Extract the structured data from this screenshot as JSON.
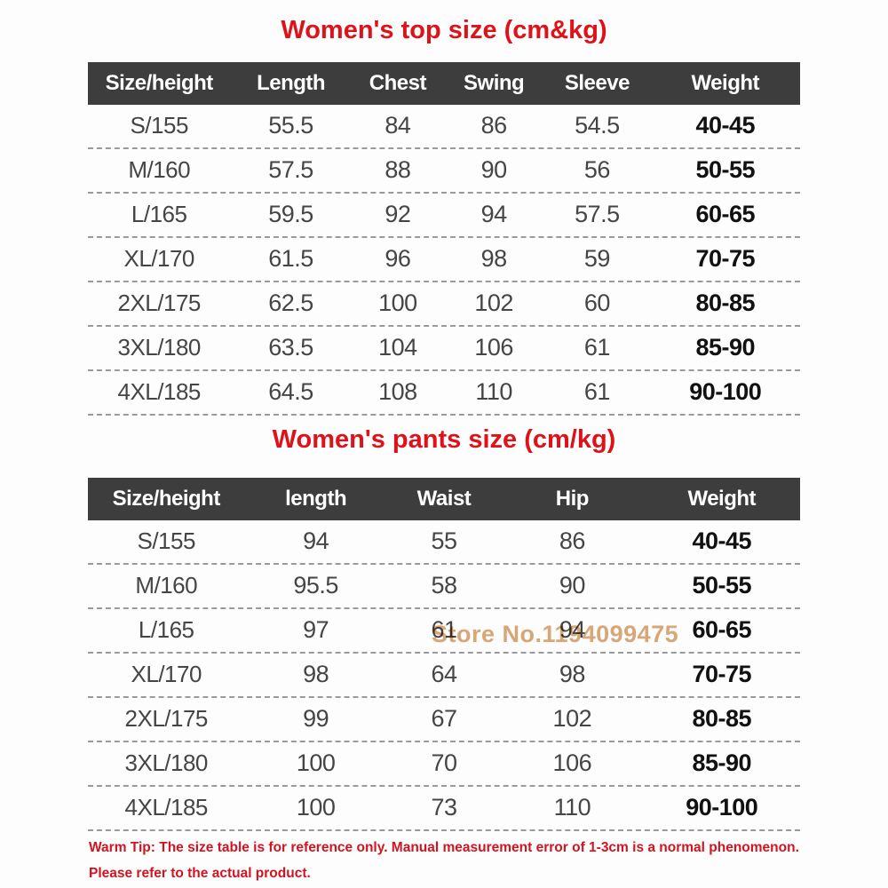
{
  "colors": {
    "page_bg": "#fdfdfd",
    "title_red": "#e01219",
    "header_bg": "#3d3d3d",
    "header_text": "#ffffff",
    "value_gray": "#454545",
    "weight_black": "#111111",
    "watermark_tan": "#d9a878",
    "warning_red": "#d31420",
    "divider_gray": "#9a9a9a"
  },
  "chart_data": [
    {
      "type": "table",
      "title": "Women's top size (cm&kg)",
      "columns": [
        "Size/height",
        "Length",
        "Chest",
        "Swing",
        "Sleeve",
        "Weight"
      ],
      "rows": [
        [
          "S/155",
          "55.5",
          "84",
          "86",
          "54.5",
          "40-45"
        ],
        [
          "M/160",
          "57.5",
          "88",
          "90",
          "56",
          "50-55"
        ],
        [
          "L/165",
          "59.5",
          "92",
          "94",
          "57.5",
          "60-65"
        ],
        [
          "XL/170",
          "61.5",
          "96",
          "98",
          "59",
          "70-75"
        ],
        [
          "2XL/175",
          "62.5",
          "100",
          "102",
          "60",
          "80-85"
        ],
        [
          "3XL/180",
          "63.5",
          "104",
          "106",
          "61",
          "85-90"
        ],
        [
          "4XL/185",
          "64.5",
          "108",
          "110",
          "61",
          "90-100"
        ]
      ]
    },
    {
      "type": "table",
      "title": "Women's pants size (cm/kg)",
      "columns": [
        "Size/height",
        "length",
        "Waist",
        "Hip",
        "Weight"
      ],
      "rows": [
        [
          "S/155",
          "94",
          "55",
          "86",
          "40-45"
        ],
        [
          "M/160",
          "95.5",
          "58",
          "90",
          "50-55"
        ],
        [
          "L/165",
          "97",
          "61",
          "94",
          "60-65"
        ],
        [
          "XL/170",
          "98",
          "64",
          "98",
          "70-75"
        ],
        [
          "2XL/175",
          "99",
          "67",
          "102",
          "80-85"
        ],
        [
          "3XL/180",
          "100",
          "70",
          "106",
          "85-90"
        ],
        [
          "4XL/185",
          "100",
          "73",
          "110",
          "90-100"
        ]
      ]
    }
  ],
  "watermark": {
    "text": "Store No.1194099475"
  },
  "warning": {
    "line1": "Warm Tip: The size table is for reference only. Manual measurement error of 1-3cm is a normal phenomenon.",
    "line2": "Please refer to the actual product."
  }
}
